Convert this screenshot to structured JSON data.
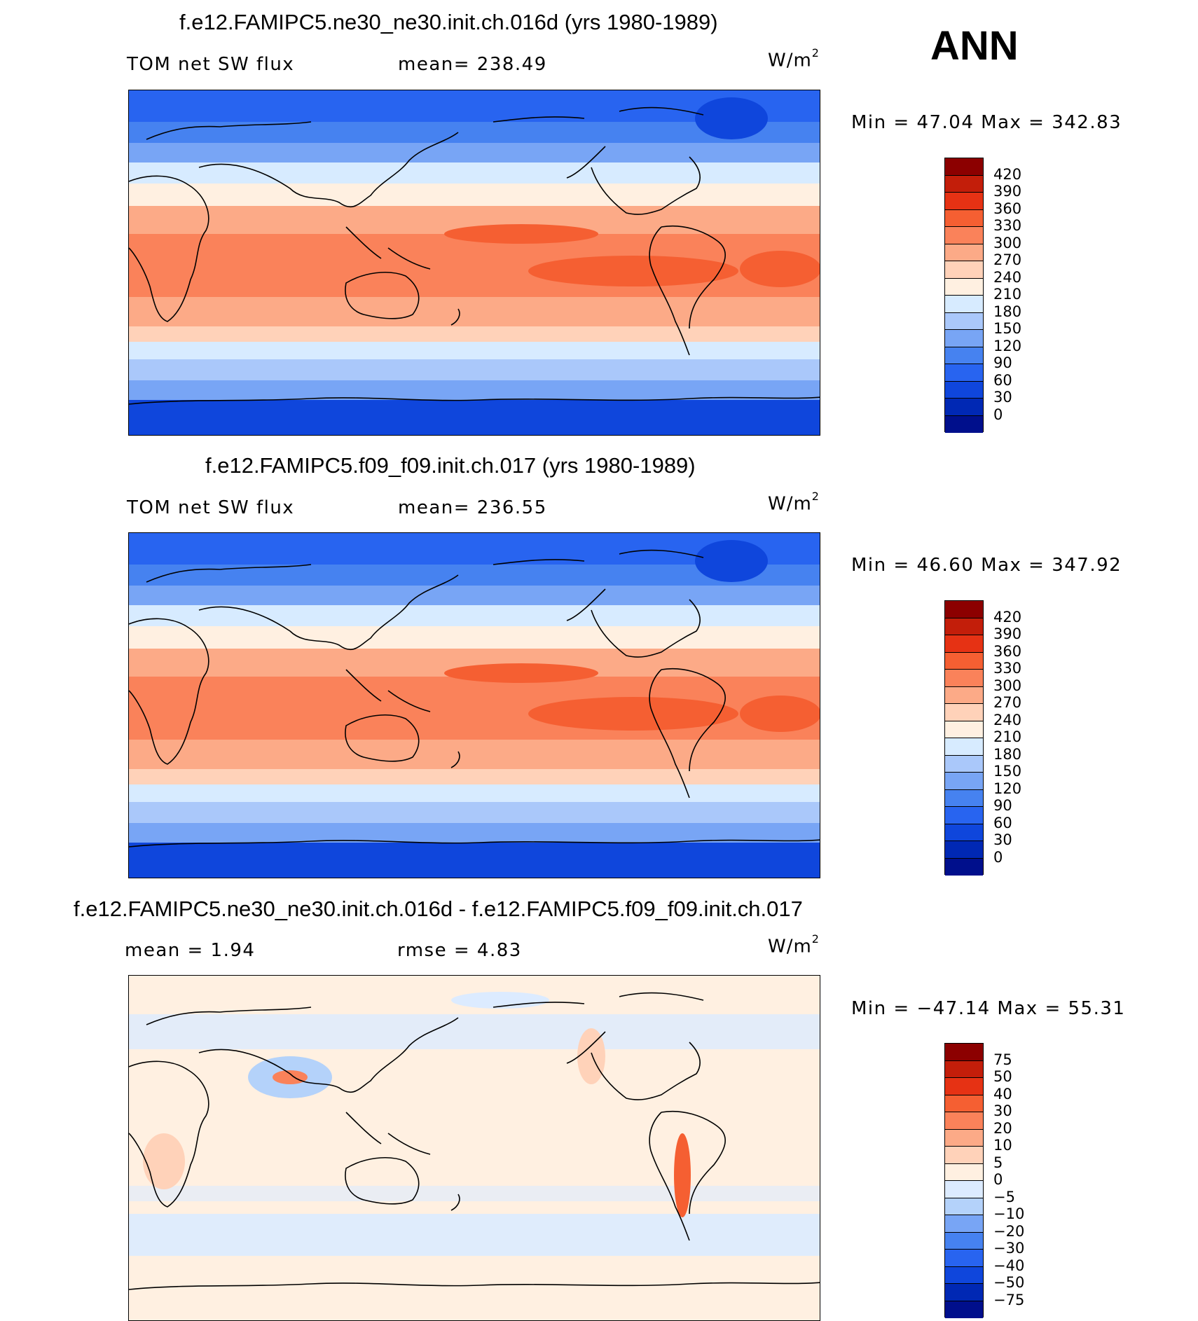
{
  "season": "ANN",
  "colors": {
    "abs_scale": [
      "#000f8c",
      "#0028b4",
      "#0f46dc",
      "#2864f0",
      "#4682f0",
      "#78a5f5",
      "#aac8fa",
      "#d7ebff",
      "#fff0e1",
      "#ffd2b9",
      "#fcaa87",
      "#fa825a",
      "#f55f32",
      "#e63214",
      "#c31e0a",
      "#8c0000"
    ],
    "diff_scale": [
      "#000f8c",
      "#0028b4",
      "#0f46dc",
      "#2864f0",
      "#4682f0",
      "#78a5f5",
      "#b4d2fa",
      "#dcebff",
      "#fff0e1",
      "#ffd2b9",
      "#fcaa87",
      "#fa825a",
      "#f55f32",
      "#e63214",
      "#c31e0a",
      "#8c0000"
    ]
  },
  "panels": [
    {
      "title": "f.e12.FAMIPC5.ne30_ne30.init.ch.016d (yrs 1980-1989)",
      "left_label": "TOM net SW flux",
      "center_label": "mean= 238.49",
      "units": "W/m",
      "units_sup": "2",
      "minmax": "Min =  47.04 Max = 342.83",
      "legend_labels": [
        "420",
        "390",
        "360",
        "330",
        "300",
        "270",
        "240",
        "210",
        "180",
        "150",
        "120",
        "90",
        "60",
        "30",
        "0"
      ]
    },
    {
      "title": "f.e12.FAMIPC5.f09_f09.init.ch.017 (yrs 1980-1989)",
      "left_label": "TOM net SW flux",
      "center_label": "mean= 236.55",
      "units": "W/m",
      "units_sup": "2",
      "minmax": "Min =  46.60 Max = 347.92",
      "legend_labels": [
        "420",
        "390",
        "360",
        "330",
        "300",
        "270",
        "240",
        "210",
        "180",
        "150",
        "120",
        "90",
        "60",
        "30",
        "0"
      ]
    },
    {
      "title": "f.e12.FAMIPC5.ne30_ne30.init.ch.016d - f.e12.FAMIPC5.f09_f09.init.ch.017",
      "left_label": "mean =    1.94",
      "center_label": "rmse =    4.83",
      "units": "W/m",
      "units_sup": "2",
      "minmax": "Min = −47.14 Max =  55.31",
      "legend_labels": [
        "75",
        "50",
        "40",
        "30",
        "20",
        "10",
        "5",
        "0",
        "−5",
        "−10",
        "−20",
        "−30",
        "−40",
        "−50",
        "−75"
      ]
    }
  ]
}
